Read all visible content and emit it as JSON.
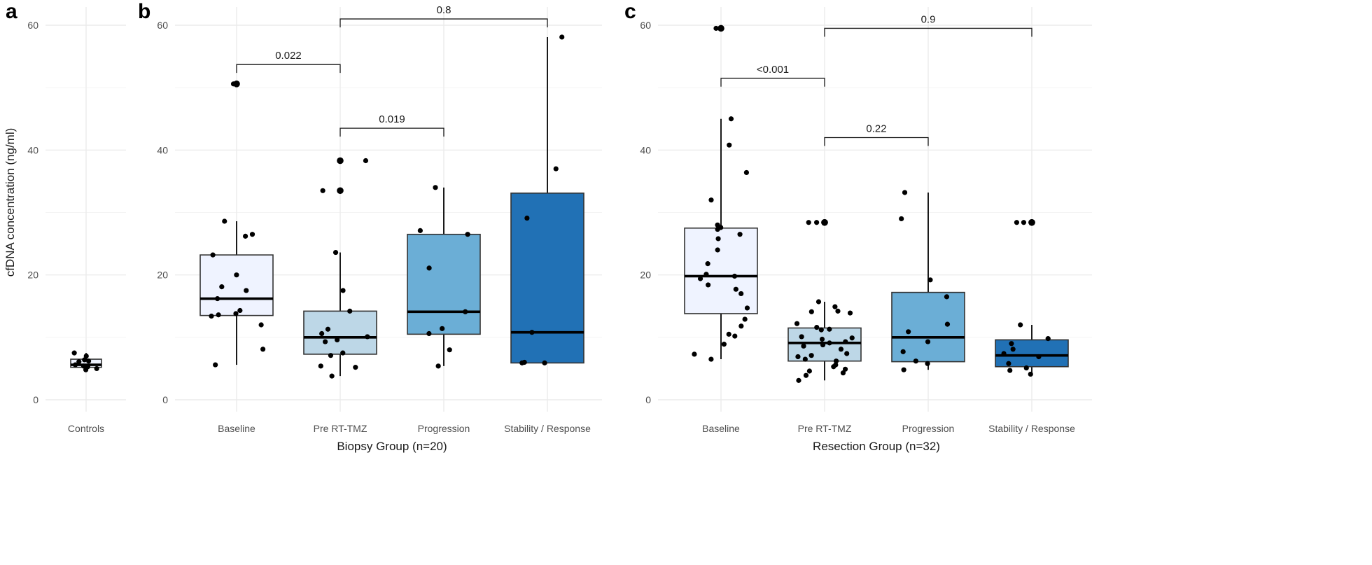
{
  "chart_data": [
    {
      "panel": "a",
      "type": "box",
      "ylabel": "cfDNA concentration (ng/ml)",
      "xlabel": "",
      "ylim": [
        0,
        60
      ],
      "yticks": [
        0,
        20,
        40,
        60
      ],
      "grid": true,
      "categories": [
        "Controls"
      ],
      "boxes": [
        {
          "category": "Controls",
          "color": "#eff3ff",
          "q1": 5.2,
          "median": 5.6,
          "q3": 6.5,
          "whisker_low": 4.6,
          "whisker_high": 7.5,
          "outliers": [],
          "points": [
            4.8,
            5.3,
            5.6,
            6.1,
            6.4,
            7.0,
            7.5,
            5.0,
            6.2,
            5.4
          ]
        }
      ],
      "comparisons": []
    },
    {
      "panel": "b",
      "type": "box",
      "xlabel": "Biopsy Group (n=20)",
      "ylabel": "",
      "ylim": [
        0,
        60
      ],
      "yticks": [
        0,
        20,
        40,
        60
      ],
      "grid": true,
      "categories": [
        "Baseline",
        "Pre RT-TMZ",
        "Progression",
        "Stability / Response"
      ],
      "boxes": [
        {
          "category": "Baseline",
          "color": "#eff3ff",
          "q1": 13.5,
          "median": 16.2,
          "q3": 23.2,
          "whisker_low": 5.6,
          "whisker_high": 28.6,
          "outliers": [
            50.6
          ],
          "points": [
            28.6,
            26.5,
            26.2,
            23.2,
            20.0,
            18.1,
            17.5,
            16.2,
            14.3,
            13.8,
            13.6,
            13.4,
            12.0,
            8.1,
            5.6,
            50.6
          ]
        },
        {
          "category": "Pre RT-TMZ",
          "color": "#bdd7e7",
          "q1": 7.3,
          "median": 10.0,
          "q3": 14.2,
          "whisker_low": 3.8,
          "whisker_high": 23.6,
          "outliers": [
            33.5,
            38.3
          ],
          "points": [
            38.3,
            33.5,
            23.6,
            17.5,
            14.2,
            11.3,
            10.6,
            10.1,
            9.6,
            9.3,
            7.5,
            7.1,
            5.4,
            5.2,
            3.8
          ]
        },
        {
          "category": "Progression",
          "color": "#6baed6",
          "q1": 10.5,
          "median": 14.1,
          "q3": 26.5,
          "whisker_low": 5.4,
          "whisker_high": 34.0,
          "outliers": [],
          "points": [
            34.0,
            27.1,
            26.5,
            21.1,
            14.1,
            11.4,
            10.6,
            8.0,
            5.4
          ]
        },
        {
          "category": "Stability / Response",
          "color": "#2171b5",
          "q1": 5.9,
          "median": 10.8,
          "q3": 33.1,
          "whisker_low": 5.9,
          "whisker_high": 58.1,
          "outliers": [],
          "points": [
            58.1,
            37.0,
            29.1,
            10.8,
            5.9,
            6.0,
            5.9
          ]
        }
      ],
      "comparisons": [
        {
          "from": "Baseline",
          "to": "Pre RT-TMZ",
          "label": "0.022",
          "y": 53.7
        },
        {
          "from": "Pre RT-TMZ",
          "to": "Progression",
          "label": "0.019",
          "y": 43.5
        },
        {
          "from": "Pre RT-TMZ",
          "to": "Stability / Response",
          "label": "0.8",
          "y": 61.0
        }
      ]
    },
    {
      "panel": "c",
      "type": "box",
      "xlabel": "Resection Group (n=32)",
      "ylabel": "",
      "ylim": [
        0,
        60
      ],
      "yticks": [
        0,
        20,
        40,
        60
      ],
      "grid": true,
      "categories": [
        "Baseline",
        "Pre RT-TMZ",
        "Progression",
        "Stability / Response"
      ],
      "boxes": [
        {
          "category": "Baseline",
          "color": "#eff3ff",
          "q1": 13.8,
          "median": 19.8,
          "q3": 27.5,
          "whisker_low": 6.5,
          "whisker_high": 45.0,
          "outliers": [
            59.5
          ],
          "points": [
            59.5,
            45.0,
            40.8,
            36.4,
            32.0,
            28.0,
            27.6,
            27.3,
            26.5,
            25.8,
            24.0,
            21.8,
            20.1,
            19.8,
            19.4,
            18.4,
            17.7,
            17.0,
            14.7,
            12.9,
            11.8,
            10.2,
            10.5,
            8.9,
            7.3,
            6.5
          ]
        },
        {
          "category": "Pre RT-TMZ",
          "color": "#bdd7e7",
          "q1": 6.2,
          "median": 9.1,
          "q3": 11.5,
          "whisker_low": 3.1,
          "whisker_high": 15.7,
          "outliers": [
            28.4,
            28.4
          ],
          "points": [
            28.4,
            28.4,
            15.7,
            14.9,
            14.2,
            14.1,
            13.9,
            12.2,
            11.6,
            11.3,
            11.2,
            10.1,
            9.9,
            9.7,
            9.3,
            9.1,
            8.8,
            8.6,
            8.1,
            7.4,
            7.1,
            6.9,
            6.5,
            6.2,
            5.6,
            5.3,
            4.9,
            4.6,
            4.3,
            3.9,
            3.1
          ]
        },
        {
          "category": "Progression",
          "color": "#6baed6",
          "q1": 6.1,
          "median": 10.0,
          "q3": 17.2,
          "whisker_low": 4.8,
          "whisker_high": 33.2,
          "outliers": [],
          "points": [
            33.2,
            29.0,
            19.2,
            16.5,
            12.1,
            10.9,
            9.3,
            7.7,
            6.2,
            5.8,
            4.8
          ]
        },
        {
          "category": "Stability / Response",
          "color": "#2171b5",
          "q1": 5.3,
          "median": 7.1,
          "q3": 9.6,
          "whisker_low": 4.1,
          "whisker_high": 12.0,
          "outliers": [
            28.4,
            28.4
          ],
          "points": [
            28.4,
            28.4,
            12.0,
            9.8,
            9.0,
            8.1,
            7.4,
            6.9,
            5.8,
            5.1,
            4.7,
            4.1
          ]
        }
      ],
      "comparisons": [
        {
          "from": "Baseline",
          "to": "Pre RT-TMZ",
          "label": "<0.001",
          "y": 51.5
        },
        {
          "from": "Pre RT-TMZ",
          "to": "Progression",
          "label": "0.22",
          "y": 42.0
        },
        {
          "from": "Pre RT-TMZ",
          "to": "Stability / Response",
          "label": "0.9",
          "y": 59.5
        }
      ]
    }
  ]
}
